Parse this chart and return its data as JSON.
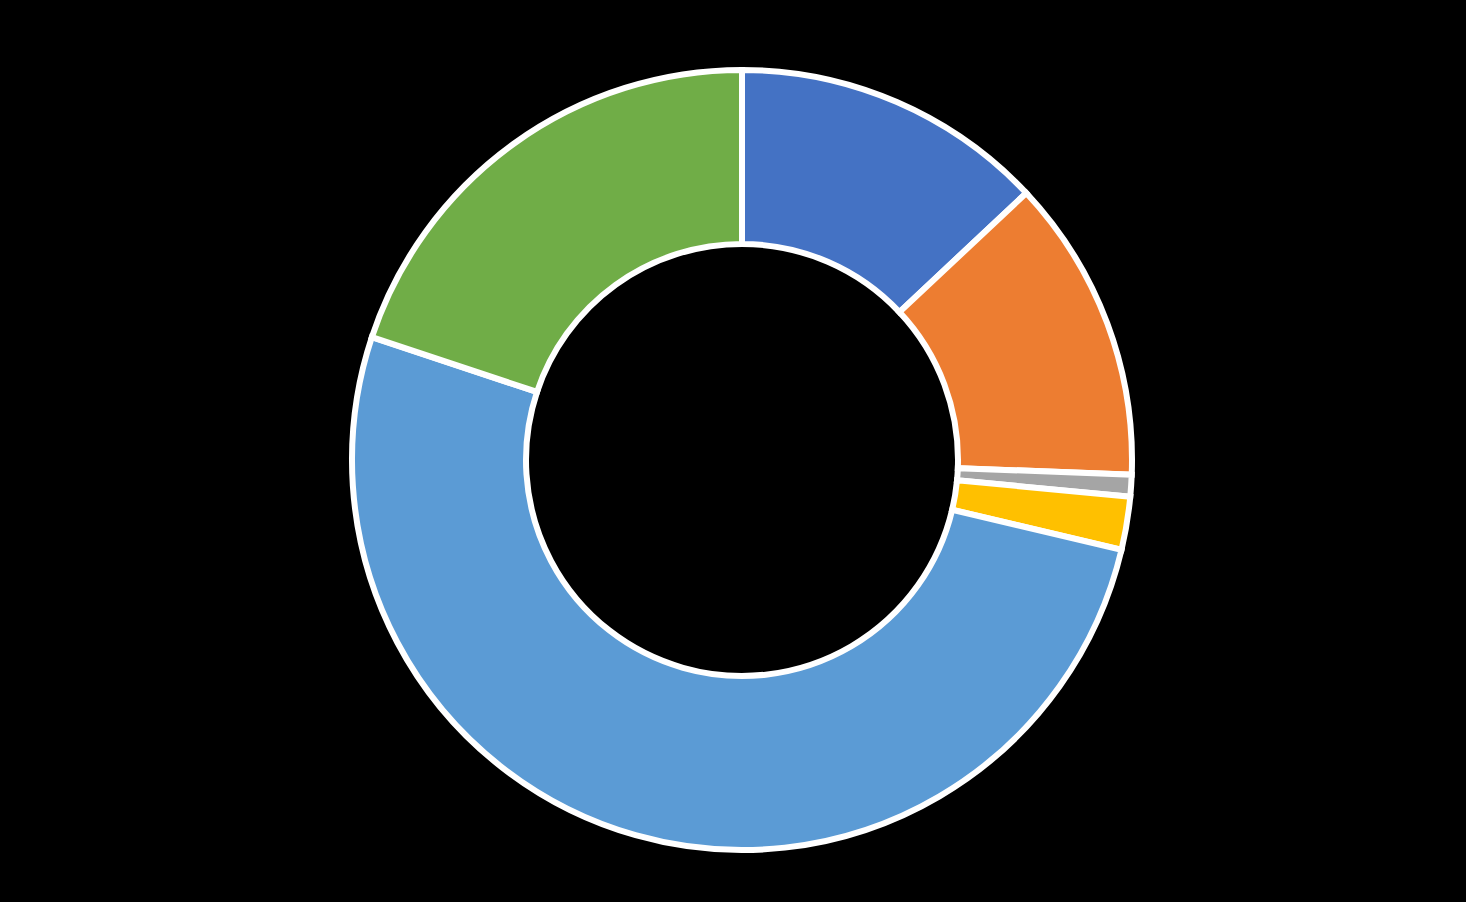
{
  "chart_data": {
    "type": "donut",
    "categories": [
      null,
      null,
      null,
      null,
      null,
      null
    ],
    "values": [
      13.0,
      12.6,
      0.9,
      2.2,
      51.4,
      19.9
    ],
    "colors": [
      "#4472c4",
      "#ed7d31",
      "#a5a5a5",
      "#ffc000",
      "#5b9bd5",
      "#70ad47"
    ]
  }
}
